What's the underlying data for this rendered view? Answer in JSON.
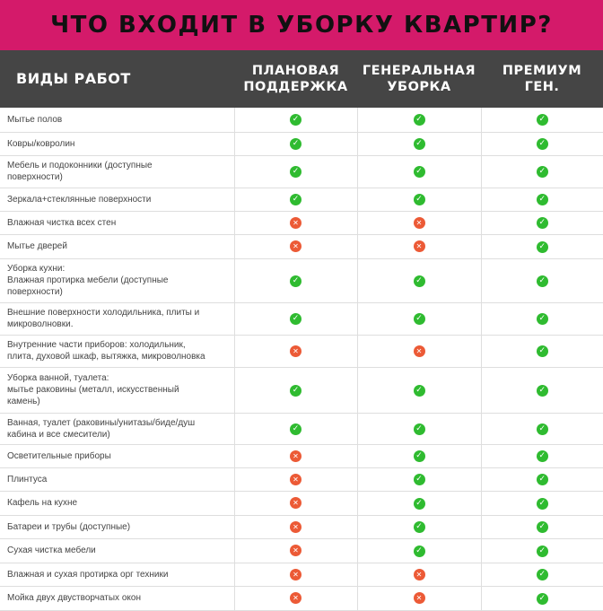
{
  "title": "ЧТО ВХОДИТ В УБОРКУ КВАРТИР?",
  "colors": {
    "banner": "#d41a6a",
    "header": "#454545",
    "yes": "#2fbb30",
    "no": "#ec5a36"
  },
  "icons": {
    "yes": "check-circle-icon",
    "no": "cross-circle-icon"
  },
  "columns": [
    "ВИДЫ РАБОТ",
    "ПЛАНОВАЯ\nПОДДЕРЖКА",
    "ГЕНЕРАЛЬНАЯ\nУБОРКА",
    "ПРЕМИУМ\nГЕН."
  ],
  "rows": [
    {
      "label": "Мытье полов",
      "marks": [
        true,
        true,
        true
      ]
    },
    {
      "label": "Ковры/ковролин",
      "marks": [
        true,
        true,
        true
      ]
    },
    {
      "label": "Мебель и подоконники (доступные\nповерхности)",
      "marks": [
        true,
        true,
        true
      ]
    },
    {
      "label": "Зеркала+стеклянные поверхности",
      "marks": [
        true,
        true,
        true
      ]
    },
    {
      "label": "Влажная чистка всех стен",
      "marks": [
        false,
        false,
        true
      ]
    },
    {
      "label": "Мытье дверей",
      "marks": [
        false,
        false,
        true
      ]
    },
    {
      "label": "Уборка кухни:\nВлажная протирка мебели (доступные\nповерхности)",
      "marks": [
        true,
        true,
        true
      ]
    },
    {
      "label": "Внешние поверхности холодильника, плиты и\nмикроволновки.",
      "marks": [
        true,
        true,
        true
      ]
    },
    {
      "label": "Внутренние части приборов: холодильник,\nплита, духовой шкаф, вытяжка, микроволновка",
      "marks": [
        false,
        false,
        true
      ]
    },
    {
      "label": "Уборка ванной, туалета:\nмытье раковины (металл, искусственный\nкамень)",
      "marks": [
        true,
        true,
        true
      ]
    },
    {
      "label": "Ванная, туалет (раковины/унитазы/биде/душ\nкабина и все смесители)",
      "marks": [
        true,
        true,
        true
      ]
    },
    {
      "label": "Осветительные приборы",
      "marks": [
        false,
        true,
        true
      ]
    },
    {
      "label": "Плинтуса",
      "marks": [
        false,
        true,
        true
      ]
    },
    {
      "label": "Кафель на кухне",
      "marks": [
        false,
        true,
        true
      ]
    },
    {
      "label": "Батареи и трубы (доступные)",
      "marks": [
        false,
        true,
        true
      ]
    },
    {
      "label": "Сухая чистка мебели",
      "marks": [
        false,
        true,
        true
      ]
    },
    {
      "label": "Влажная и сухая протирка орг техники",
      "marks": [
        false,
        false,
        true
      ]
    },
    {
      "label": "Мойка двух двустворчатых окон",
      "marks": [
        false,
        false,
        true
      ]
    }
  ]
}
